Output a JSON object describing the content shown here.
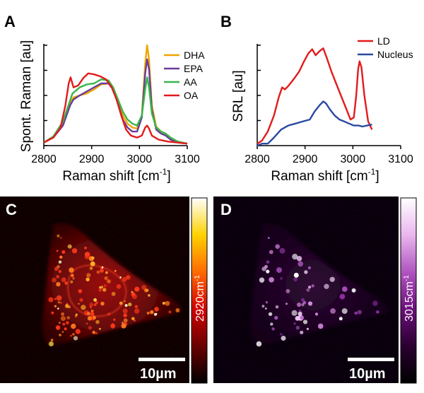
{
  "figure": {
    "panel_c_colors": [
      "#000000",
      "#6a0000",
      "#d10000",
      "#ff6a00",
      "#ffd200",
      "#ffffff"
    ],
    "panel_d_colors": [
      "#000000",
      "#2a0030",
      "#6a0f7a",
      "#b055c0",
      "#e9b6ee",
      "#ffffff"
    ]
  },
  "chart_data": [
    {
      "panel": "A",
      "type": "line",
      "xlabel": "Raman shift [cm",
      "xlabel_sup": "-1",
      "xlabel_end": "]",
      "ylabel": "Spont. Raman [au]",
      "xlim": [
        2800,
        3100
      ],
      "ylim": [
        0,
        1.0
      ],
      "xticks": [
        2800,
        2900,
        3000,
        3100
      ],
      "series": [
        {
          "name": "DHA",
          "color": "#f0a500",
          "points": [
            [
              2800,
              0.03
            ],
            [
              2820,
              0.09
            ],
            [
              2840,
              0.22
            ],
            [
              2855,
              0.42
            ],
            [
              2862,
              0.48
            ],
            [
              2875,
              0.5
            ],
            [
              2890,
              0.52
            ],
            [
              2905,
              0.56
            ],
            [
              2920,
              0.61
            ],
            [
              2935,
              0.62
            ],
            [
              2945,
              0.58
            ],
            [
              2955,
              0.44
            ],
            [
              2965,
              0.3
            ],
            [
              2975,
              0.22
            ],
            [
              2985,
              0.18
            ],
            [
              2995,
              0.17
            ],
            [
              3005,
              0.3
            ],
            [
              3012,
              0.82
            ],
            [
              3016,
              1.0
            ],
            [
              3020,
              0.86
            ],
            [
              3026,
              0.4
            ],
            [
              3035,
              0.19
            ],
            [
              3045,
              0.14
            ],
            [
              3055,
              0.12
            ],
            [
              3065,
              0.07
            ],
            [
              3080,
              0.04
            ],
            [
              3100,
              0.02
            ]
          ]
        },
        {
          "name": "EPA",
          "color": "#6a3d9a",
          "points": [
            [
              2800,
              0.03
            ],
            [
              2820,
              0.08
            ],
            [
              2840,
              0.2
            ],
            [
              2855,
              0.4
            ],
            [
              2862,
              0.46
            ],
            [
              2875,
              0.5
            ],
            [
              2890,
              0.54
            ],
            [
              2905,
              0.58
            ],
            [
              2920,
              0.62
            ],
            [
              2935,
              0.62
            ],
            [
              2945,
              0.56
            ],
            [
              2955,
              0.42
            ],
            [
              2965,
              0.26
            ],
            [
              2975,
              0.18
            ],
            [
              2985,
              0.14
            ],
            [
              2995,
              0.14
            ],
            [
              3005,
              0.28
            ],
            [
              3012,
              0.72
            ],
            [
              3016,
              0.86
            ],
            [
              3020,
              0.76
            ],
            [
              3026,
              0.36
            ],
            [
              3035,
              0.16
            ],
            [
              3045,
              0.12
            ],
            [
              3055,
              0.1
            ],
            [
              3065,
              0.06
            ],
            [
              3080,
              0.03
            ],
            [
              3100,
              0.02
            ]
          ]
        },
        {
          "name": "AA",
          "color": "#39b54a",
          "points": [
            [
              2800,
              0.03
            ],
            [
              2820,
              0.09
            ],
            [
              2840,
              0.24
            ],
            [
              2850,
              0.38
            ],
            [
              2860,
              0.52
            ],
            [
              2875,
              0.58
            ],
            [
              2890,
              0.61
            ],
            [
              2905,
              0.62
            ],
            [
              2920,
              0.66
            ],
            [
              2935,
              0.65
            ],
            [
              2945,
              0.58
            ],
            [
              2955,
              0.46
            ],
            [
              2965,
              0.34
            ],
            [
              2975,
              0.26
            ],
            [
              2985,
              0.22
            ],
            [
              2995,
              0.2
            ],
            [
              3005,
              0.3
            ],
            [
              3012,
              0.56
            ],
            [
              3016,
              0.68
            ],
            [
              3020,
              0.58
            ],
            [
              3026,
              0.32
            ],
            [
              3035,
              0.18
            ],
            [
              3045,
              0.14
            ],
            [
              3055,
              0.12
            ],
            [
              3065,
              0.08
            ],
            [
              3080,
              0.04
            ],
            [
              3100,
              0.02
            ]
          ]
        },
        {
          "name": "OA",
          "color": "#e21b1b",
          "points": [
            [
              2800,
              0.03
            ],
            [
              2820,
              0.08
            ],
            [
              2835,
              0.18
            ],
            [
              2845,
              0.4
            ],
            [
              2852,
              0.62
            ],
            [
              2856,
              0.68
            ],
            [
              2862,
              0.58
            ],
            [
              2872,
              0.6
            ],
            [
              2882,
              0.67
            ],
            [
              2893,
              0.72
            ],
            [
              2905,
              0.71
            ],
            [
              2918,
              0.69
            ],
            [
              2930,
              0.66
            ],
            [
              2942,
              0.58
            ],
            [
              2952,
              0.46
            ],
            [
              2962,
              0.3
            ],
            [
              2972,
              0.16
            ],
            [
              2982,
              0.1
            ],
            [
              2995,
              0.08
            ],
            [
              3005,
              0.1
            ],
            [
              3012,
              0.18
            ],
            [
              3016,
              0.2
            ],
            [
              3020,
              0.17
            ],
            [
              3026,
              0.1
            ],
            [
              3040,
              0.06
            ],
            [
              3060,
              0.04
            ],
            [
              3080,
              0.03
            ],
            [
              3100,
              0.02
            ]
          ]
        }
      ]
    },
    {
      "panel": "B",
      "type": "line",
      "xlabel": "Raman shift [cm",
      "xlabel_sup": "-1",
      "xlabel_end": "]",
      "ylabel": "SRL [au]",
      "xlim": [
        2800,
        3100
      ],
      "ylim": [
        0,
        1.0
      ],
      "xticks": [
        2800,
        2900,
        3000,
        3100
      ],
      "series": [
        {
          "name": "LD",
          "color": "#e21b1b",
          "points": [
            [
              2800,
              0.02
            ],
            [
              2810,
              0.05
            ],
            [
              2822,
              0.14
            ],
            [
              2835,
              0.3
            ],
            [
              2845,
              0.48
            ],
            [
              2852,
              0.58
            ],
            [
              2858,
              0.56
            ],
            [
              2866,
              0.6
            ],
            [
              2876,
              0.66
            ],
            [
              2888,
              0.74
            ],
            [
              2898,
              0.84
            ],
            [
              2907,
              0.92
            ],
            [
              2915,
              0.96
            ],
            [
              2922,
              0.9
            ],
            [
              2930,
              0.94
            ],
            [
              2938,
              0.97
            ],
            [
              2945,
              0.88
            ],
            [
              2955,
              0.74
            ],
            [
              2965,
              0.62
            ],
            [
              2975,
              0.5
            ],
            [
              2985,
              0.38
            ],
            [
              2995,
              0.26
            ],
            [
              3002,
              0.28
            ],
            [
              3007,
              0.5
            ],
            [
              3011,
              0.76
            ],
            [
              3014,
              0.84
            ],
            [
              3018,
              0.78
            ],
            [
              3024,
              0.5
            ],
            [
              3032,
              0.24
            ],
            [
              3040,
              0.16
            ]
          ]
        },
        {
          "name": "Nucleus",
          "color": "#2a4aa0",
          "points": [
            [
              2800,
              0.0
            ],
            [
              2810,
              0.02
            ],
            [
              2822,
              0.02
            ],
            [
              2835,
              0.08
            ],
            [
              2850,
              0.16
            ],
            [
              2865,
              0.2
            ],
            [
              2880,
              0.22
            ],
            [
              2895,
              0.24
            ],
            [
              2910,
              0.26
            ],
            [
              2920,
              0.34
            ],
            [
              2930,
              0.4
            ],
            [
              2938,
              0.44
            ],
            [
              2944,
              0.42
            ],
            [
              2952,
              0.36
            ],
            [
              2962,
              0.3
            ],
            [
              2972,
              0.26
            ],
            [
              2982,
              0.24
            ],
            [
              2992,
              0.22
            ],
            [
              3002,
              0.2
            ],
            [
              3012,
              0.2
            ],
            [
              3020,
              0.19
            ],
            [
              3030,
              0.2
            ],
            [
              3040,
              0.21
            ]
          ]
        }
      ]
    },
    {
      "panel": "C",
      "type": "heatmap",
      "colorbar_label": "2920cm",
      "colorbar_sup": "-1",
      "scalebar_label": "10µm"
    },
    {
      "panel": "D",
      "type": "heatmap",
      "colorbar_label": "3015cm",
      "colorbar_sup": "-1",
      "scalebar_label": "10µm"
    }
  ]
}
